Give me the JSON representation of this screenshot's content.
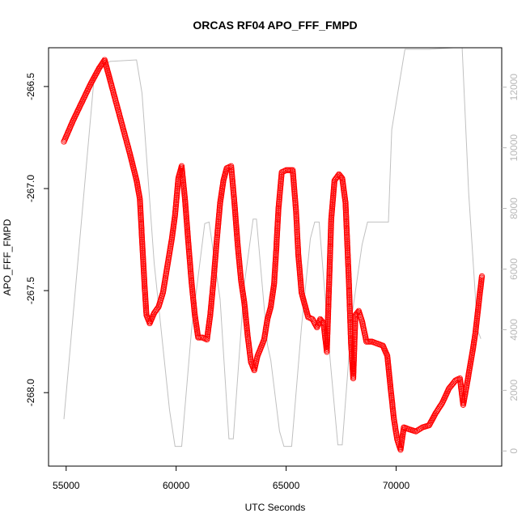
{
  "chart_data": {
    "type": "scatter",
    "title": "ORCAS RF04 APO_FFF_FMPD",
    "xlabel": "UTC Seconds",
    "ylabel": "APO_FFF_FMPD",
    "xlim": [
      54200,
      74800
    ],
    "ylim": [
      -268.36,
      -266.31
    ],
    "y2lim": [
      -500,
      13300
    ],
    "x_ticks": [
      55000,
      60000,
      65000,
      70000
    ],
    "x_tick_labels": [
      "55000",
      "60000",
      "65000",
      "70000"
    ],
    "y_ticks": [
      -268.0,
      -267.5,
      -267.0,
      -266.5
    ],
    "y_tick_labels": [
      "-268.0",
      "-267.5",
      "-267.0",
      "-266.5"
    ],
    "y2_ticks": [
      0,
      2000,
      4000,
      6000,
      8000,
      10000,
      12000
    ],
    "y2_tick_labels": [
      "0",
      "2000",
      "4000",
      "6000",
      "8000",
      "10000",
      "12000"
    ],
    "grid": false,
    "series": [
      {
        "role": "APO_FFF_FMPD",
        "style": "open-circles",
        "color": "#ff0000",
        "axis": "left",
        "points": [
          [
            54900,
            -266.77
          ],
          [
            55300,
            -266.67
          ],
          [
            55700,
            -266.58
          ],
          [
            56100,
            -266.49
          ],
          [
            56500,
            -266.41
          ],
          [
            56750,
            -266.37
          ],
          [
            57000,
            -266.47
          ],
          [
            57300,
            -266.59
          ],
          [
            57600,
            -266.71
          ],
          [
            57900,
            -266.83
          ],
          [
            58200,
            -266.96
          ],
          [
            58350,
            -267.05
          ],
          [
            58450,
            -267.25
          ],
          [
            58550,
            -267.45
          ],
          [
            58650,
            -267.62
          ],
          [
            58800,
            -267.66
          ],
          [
            59000,
            -267.61
          ],
          [
            59200,
            -267.58
          ],
          [
            59400,
            -267.51
          ],
          [
            59600,
            -267.38
          ],
          [
            59800,
            -267.25
          ],
          [
            59950,
            -267.13
          ],
          [
            60100,
            -266.95
          ],
          [
            60250,
            -266.89
          ],
          [
            60400,
            -267.05
          ],
          [
            60550,
            -267.26
          ],
          [
            60700,
            -267.46
          ],
          [
            60850,
            -267.62
          ],
          [
            61000,
            -267.73
          ],
          [
            61200,
            -267.73
          ],
          [
            61400,
            -267.74
          ],
          [
            61550,
            -267.62
          ],
          [
            61700,
            -267.45
          ],
          [
            61850,
            -267.25
          ],
          [
            62000,
            -267.07
          ],
          [
            62150,
            -266.96
          ],
          [
            62300,
            -266.9
          ],
          [
            62500,
            -266.89
          ],
          [
            62650,
            -267.07
          ],
          [
            62800,
            -267.28
          ],
          [
            62950,
            -267.45
          ],
          [
            63100,
            -267.56
          ],
          [
            63250,
            -267.72
          ],
          [
            63400,
            -267.85
          ],
          [
            63550,
            -267.89
          ],
          [
            63700,
            -267.82
          ],
          [
            63850,
            -267.78
          ],
          [
            64000,
            -267.74
          ],
          [
            64150,
            -267.64
          ],
          [
            64300,
            -267.58
          ],
          [
            64450,
            -267.47
          ],
          [
            64550,
            -267.3
          ],
          [
            64650,
            -267.1
          ],
          [
            64800,
            -266.92
          ],
          [
            65000,
            -266.91
          ],
          [
            65300,
            -266.91
          ],
          [
            65450,
            -267.11
          ],
          [
            65550,
            -267.32
          ],
          [
            65700,
            -267.51
          ],
          [
            65850,
            -267.57
          ],
          [
            66000,
            -267.63
          ],
          [
            66200,
            -267.64
          ],
          [
            66400,
            -267.68
          ],
          [
            66550,
            -267.64
          ],
          [
            66700,
            -267.66
          ],
          [
            66850,
            -267.8
          ],
          [
            66950,
            -267.48
          ],
          [
            67050,
            -267.15
          ],
          [
            67200,
            -266.96
          ],
          [
            67400,
            -266.93
          ],
          [
            67550,
            -266.95
          ],
          [
            67700,
            -267.07
          ],
          [
            67850,
            -267.45
          ],
          [
            67950,
            -267.76
          ],
          [
            68050,
            -267.93
          ],
          [
            68150,
            -267.62
          ],
          [
            68300,
            -267.6
          ],
          [
            68450,
            -267.65
          ],
          [
            68650,
            -267.75
          ],
          [
            68900,
            -267.75
          ],
          [
            69150,
            -267.76
          ],
          [
            69400,
            -267.77
          ],
          [
            69600,
            -267.82
          ],
          [
            69750,
            -267.98
          ],
          [
            69900,
            -268.13
          ],
          [
            70050,
            -268.23
          ],
          [
            70200,
            -268.28
          ],
          [
            70350,
            -268.17
          ],
          [
            70600,
            -268.18
          ],
          [
            70900,
            -268.19
          ],
          [
            71200,
            -268.17
          ],
          [
            71500,
            -268.16
          ],
          [
            71800,
            -268.1
          ],
          [
            72100,
            -268.05
          ],
          [
            72400,
            -267.98
          ],
          [
            72700,
            -267.94
          ],
          [
            72900,
            -267.93
          ],
          [
            73050,
            -268.06
          ],
          [
            73250,
            -267.94
          ],
          [
            73500,
            -267.78
          ],
          [
            73600,
            -267.71
          ],
          [
            73800,
            -267.52
          ],
          [
            73900,
            -267.43
          ]
        ]
      },
      {
        "role": "altitude",
        "style": "line",
        "color": "#c0c0c0",
        "axis": "right",
        "points": [
          [
            54900,
            1050
          ],
          [
            56300,
            12550
          ],
          [
            57000,
            12850
          ],
          [
            58200,
            12900
          ],
          [
            58450,
            11800
          ],
          [
            59000,
            6200
          ],
          [
            59700,
            1350
          ],
          [
            59950,
            150
          ],
          [
            60250,
            150
          ],
          [
            60700,
            4000
          ],
          [
            61300,
            7500
          ],
          [
            61500,
            7550
          ],
          [
            62000,
            5000
          ],
          [
            62400,
            400
          ],
          [
            62600,
            400
          ],
          [
            63100,
            5500
          ],
          [
            63500,
            7650
          ],
          [
            63650,
            7650
          ],
          [
            64150,
            3500
          ],
          [
            64300,
            3000
          ],
          [
            64700,
            650
          ],
          [
            64900,
            150
          ],
          [
            65250,
            150
          ],
          [
            65700,
            4100
          ],
          [
            66100,
            7000
          ],
          [
            66300,
            7550
          ],
          [
            66500,
            7550
          ],
          [
            67000,
            3000
          ],
          [
            67350,
            200
          ],
          [
            67550,
            200
          ],
          [
            68000,
            4500
          ],
          [
            68450,
            6800
          ],
          [
            68700,
            7550
          ],
          [
            69650,
            7550
          ],
          [
            69800,
            10600
          ],
          [
            70400,
            13250
          ],
          [
            71500,
            13250
          ],
          [
            72600,
            13300
          ],
          [
            73000,
            13300
          ],
          [
            73300,
            8500
          ],
          [
            73700,
            4000
          ],
          [
            73850,
            3700
          ]
        ]
      }
    ]
  }
}
